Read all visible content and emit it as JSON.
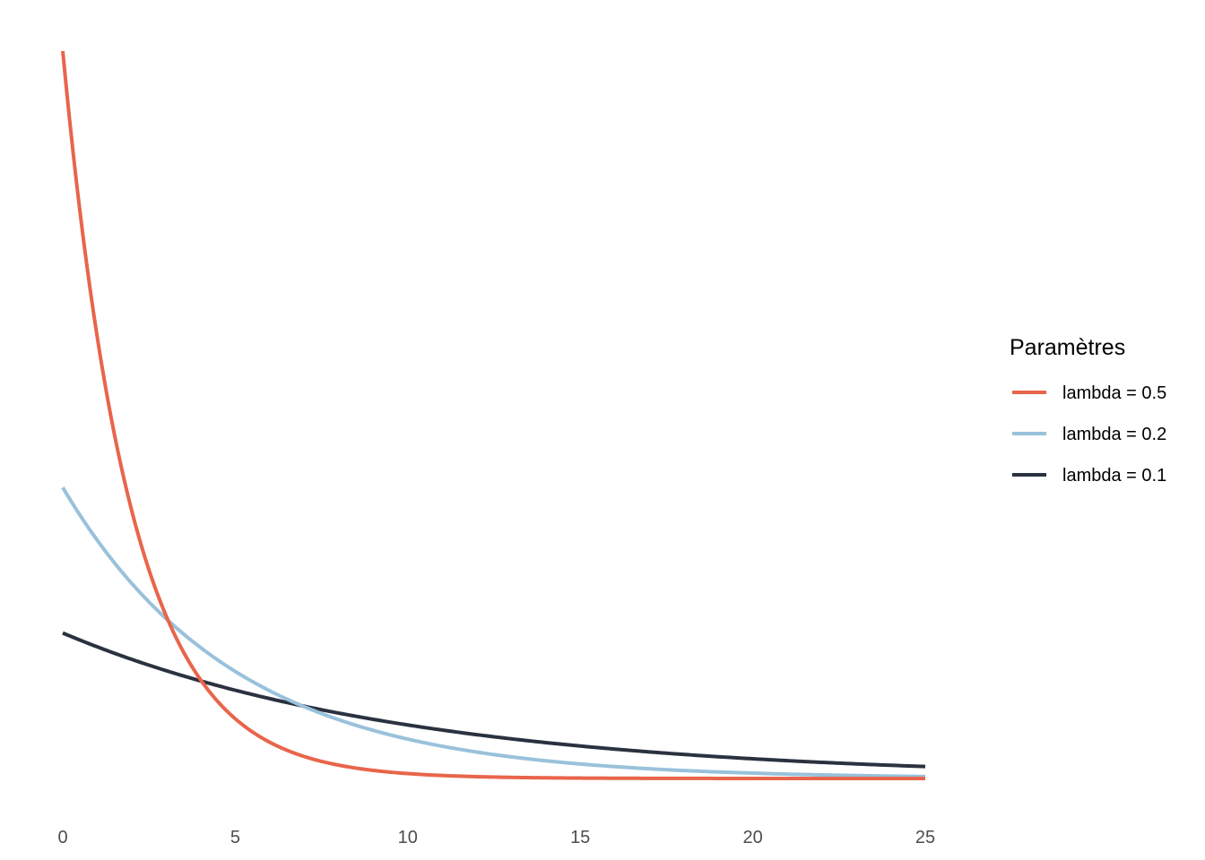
{
  "chart_data": {
    "type": "line",
    "title": "",
    "xlabel": "",
    "ylabel": "",
    "xlim": [
      0,
      25
    ],
    "ylim": [
      0,
      0.5
    ],
    "x_ticks": [
      "0",
      "5",
      "10",
      "15",
      "20",
      "25"
    ],
    "y_ticks": [],
    "grid": false,
    "legend": {
      "title": "Paramètres",
      "position": "right"
    },
    "series": [
      {
        "name": "lambda = 0.5",
        "color": "#E8654B",
        "lambda": 0.5,
        "x": [
          0,
          0.5,
          1,
          1.5,
          2,
          2.5,
          3,
          3.5,
          4,
          4.5,
          5,
          6,
          7,
          8,
          9,
          10,
          12,
          14,
          16,
          18,
          20,
          22,
          25
        ],
        "y": [
          0.5,
          0.3894,
          0.3033,
          0.2362,
          0.1839,
          0.1433,
          0.1116,
          0.0869,
          0.0677,
          0.0527,
          0.041,
          0.0249,
          0.0151,
          0.0092,
          0.0056,
          0.0034,
          0.0012,
          0.0005,
          0.0002,
          0.0001,
          0.0,
          0.0,
          0.0
        ]
      },
      {
        "name": "lambda = 0.2",
        "color": "#99C1DB",
        "lambda": 0.2,
        "x": [
          0,
          1,
          2,
          3,
          4,
          5,
          6,
          7,
          8,
          9,
          10,
          12,
          14,
          16,
          18,
          20,
          22,
          25
        ],
        "y": [
          0.2,
          0.1637,
          0.1341,
          0.1098,
          0.0899,
          0.0736,
          0.0602,
          0.0493,
          0.0404,
          0.0331,
          0.0271,
          0.0181,
          0.0122,
          0.0082,
          0.0055,
          0.0037,
          0.0025,
          0.0013
        ]
      },
      {
        "name": "lambda = 0.1",
        "color": "#2A3240",
        "lambda": 0.1,
        "x": [
          0,
          1,
          2,
          3,
          4,
          5,
          6,
          7,
          8,
          9,
          10,
          12,
          14,
          16,
          18,
          20,
          22,
          25
        ],
        "y": [
          0.1,
          0.0905,
          0.0819,
          0.0741,
          0.067,
          0.0607,
          0.0549,
          0.0497,
          0.0449,
          0.0407,
          0.0368,
          0.0301,
          0.0247,
          0.0202,
          0.0165,
          0.0135,
          0.0111,
          0.0082
        ]
      }
    ]
  }
}
